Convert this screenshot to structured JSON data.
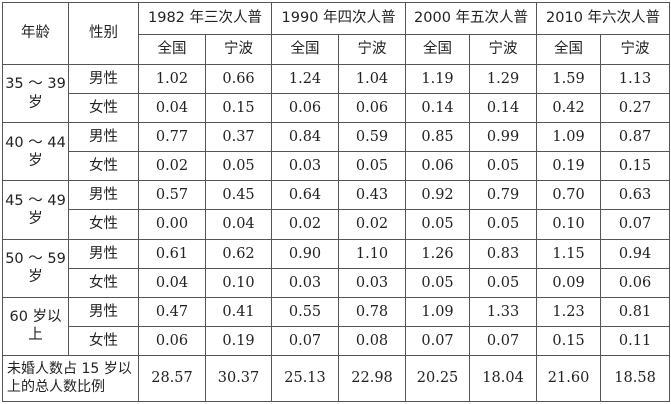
{
  "header": {
    "age_label": "年龄",
    "sex_label": "性别",
    "censuses": [
      {
        "title": "1982 年三次人普",
        "national": "全国",
        "ningbo": "宁波"
      },
      {
        "title": "1990 年四次人普",
        "national": "全国",
        "ningbo": "宁波"
      },
      {
        "title": "2000 年五次人普",
        "national": "全国",
        "ningbo": "宁波"
      },
      {
        "title": "2010 年六次人普",
        "national": "全国",
        "ningbo": "宁波"
      }
    ]
  },
  "groups": [
    {
      "age": "35 ～ 39 岁",
      "rows": [
        {
          "sex": "男性",
          "values": [
            "1.02",
            "0.66",
            "1.24",
            "1.04",
            "1.19",
            "1.29",
            "1.59",
            "1.13"
          ]
        },
        {
          "sex": "女性",
          "values": [
            "0.04",
            "0.15",
            "0.06",
            "0.06",
            "0.14",
            "0.14",
            "0.42",
            "0.27"
          ]
        }
      ]
    },
    {
      "age": "40 ～ 44 岁",
      "rows": [
        {
          "sex": "男性",
          "values": [
            "0.77",
            "0.37",
            "0.84",
            "0.59",
            "0.85",
            "0.99",
            "1.09",
            "0.87"
          ]
        },
        {
          "sex": "女性",
          "values": [
            "0.02",
            "0.05",
            "0.03",
            "0.05",
            "0.06",
            "0.05",
            "0.19",
            "0.15"
          ]
        }
      ]
    },
    {
      "age": "45 ～ 49 岁",
      "rows": [
        {
          "sex": "男性",
          "values": [
            "0.57",
            "0.45",
            "0.64",
            "0.43",
            "0.92",
            "0.79",
            "0.70",
            "0.63"
          ]
        },
        {
          "sex": "女性",
          "values": [
            "0.00",
            "0.04",
            "0.02",
            "0.02",
            "0.05",
            "0.05",
            "0.10",
            "0.07"
          ]
        }
      ]
    },
    {
      "age": "50 ～ 59 岁",
      "rows": [
        {
          "sex": "男性",
          "values": [
            "0.61",
            "0.62",
            "0.90",
            "1.10",
            "1.26",
            "0.83",
            "1.15",
            "0.94"
          ]
        },
        {
          "sex": "女性",
          "values": [
            "0.04",
            "0.10",
            "0.03",
            "0.03",
            "0.05",
            "0.05",
            "0.09",
            "0.06"
          ]
        }
      ]
    },
    {
      "age": "60 岁以上",
      "rows": [
        {
          "sex": "男性",
          "values": [
            "0.47",
            "0.41",
            "0.55",
            "0.78",
            "1.09",
            "1.33",
            "1.23",
            "0.81"
          ]
        },
        {
          "sex": "女性",
          "values": [
            "0.06",
            "0.19",
            "0.07",
            "0.08",
            "0.07",
            "0.07",
            "0.15",
            "0.11"
          ]
        }
      ]
    }
  ],
  "footer": {
    "label": "未婚人数占 15 岁以上的总人数比例",
    "values": [
      "28.57",
      "30.37",
      "25.13",
      "22.98",
      "20.25",
      "18.04",
      "21.60",
      "18.58"
    ]
  }
}
